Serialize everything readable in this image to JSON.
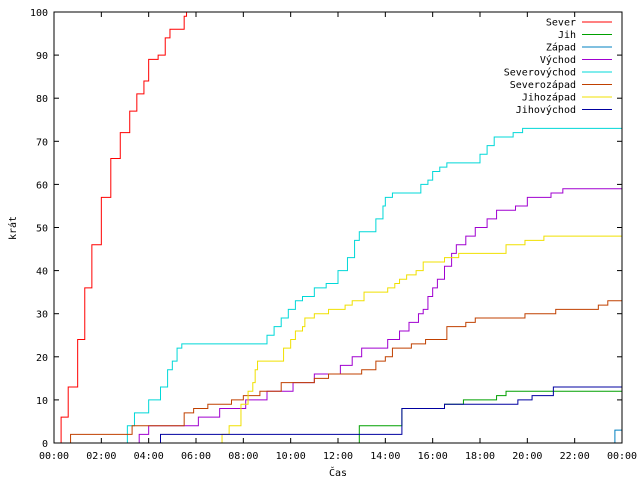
{
  "chart_data": {
    "type": "line",
    "step": true,
    "xlabel": "Čas",
    "ylabel": "krát",
    "xlim": [
      0,
      24
    ],
    "ylim": [
      0,
      100
    ],
    "x_ticks": [
      "00:00",
      "02:00",
      "04:00",
      "06:00",
      "08:00",
      "10:00",
      "12:00",
      "14:00",
      "16:00",
      "18:00",
      "20:00",
      "22:00",
      "00:00"
    ],
    "y_ticks": [
      0,
      10,
      20,
      30,
      40,
      50,
      60,
      70,
      80,
      90,
      100
    ],
    "grid": false,
    "legend_position": "top-right",
    "series": [
      {
        "name": "Sever",
        "color": "#ff0000",
        "points": [
          [
            0,
            0
          ],
          [
            0.3,
            6
          ],
          [
            0.6,
            13
          ],
          [
            1.0,
            24
          ],
          [
            1.3,
            36
          ],
          [
            1.6,
            46
          ],
          [
            2.0,
            57
          ],
          [
            2.4,
            66
          ],
          [
            2.8,
            72
          ],
          [
            3.2,
            77
          ],
          [
            3.5,
            81
          ],
          [
            3.8,
            84
          ],
          [
            4.0,
            89
          ],
          [
            4.4,
            90
          ],
          [
            4.7,
            94
          ],
          [
            4.9,
            96
          ],
          [
            5.1,
            96
          ],
          [
            5.3,
            96
          ],
          [
            5.5,
            99
          ],
          [
            5.6,
            100
          ]
        ]
      },
      {
        "name": "Jih",
        "color": "#00a000",
        "points": [
          [
            0,
            0
          ],
          [
            12.8,
            0
          ],
          [
            12.9,
            4
          ],
          [
            14.6,
            4
          ],
          [
            14.7,
            8
          ],
          [
            16.4,
            8
          ],
          [
            16.5,
            9
          ],
          [
            17.2,
            9
          ],
          [
            17.3,
            10
          ],
          [
            18.6,
            10
          ],
          [
            18.7,
            11
          ],
          [
            19.0,
            11
          ],
          [
            19.1,
            12
          ],
          [
            24,
            12
          ]
        ]
      },
      {
        "name": "Západ",
        "color": "#0080c0",
        "points": [
          [
            0,
            0
          ],
          [
            23.6,
            0
          ],
          [
            23.7,
            3
          ],
          [
            24,
            3
          ]
        ]
      },
      {
        "name": "Východ",
        "color": "#a000d0",
        "points": [
          [
            0,
            0
          ],
          [
            3.5,
            0
          ],
          [
            3.6,
            2
          ],
          [
            3.9,
            2
          ],
          [
            4.0,
            4
          ],
          [
            6.0,
            4
          ],
          [
            6.1,
            6
          ],
          [
            6.9,
            6
          ],
          [
            7.0,
            8
          ],
          [
            8.0,
            8
          ],
          [
            8.1,
            10
          ],
          [
            8.9,
            10
          ],
          [
            9.0,
            12
          ],
          [
            10.0,
            12
          ],
          [
            10.1,
            14
          ],
          [
            10.9,
            14
          ],
          [
            11.0,
            16
          ],
          [
            12.0,
            16
          ],
          [
            12.1,
            18
          ],
          [
            12.5,
            18
          ],
          [
            12.6,
            20
          ],
          [
            12.9,
            20
          ],
          [
            13.0,
            22
          ],
          [
            14.0,
            22
          ],
          [
            14.1,
            24
          ],
          [
            14.5,
            24
          ],
          [
            14.6,
            26
          ],
          [
            14.9,
            26
          ],
          [
            15.0,
            28
          ],
          [
            15.3,
            28
          ],
          [
            15.4,
            30
          ],
          [
            15.6,
            31
          ],
          [
            15.8,
            34
          ],
          [
            16.0,
            36
          ],
          [
            16.2,
            38
          ],
          [
            16.5,
            41
          ],
          [
            16.8,
            44
          ],
          [
            17.0,
            46
          ],
          [
            17.3,
            46
          ],
          [
            17.4,
            48
          ],
          [
            17.7,
            48
          ],
          [
            17.8,
            50
          ],
          [
            18.2,
            50
          ],
          [
            18.3,
            52
          ],
          [
            18.6,
            52
          ],
          [
            18.7,
            54
          ],
          [
            19.4,
            54
          ],
          [
            19.5,
            55
          ],
          [
            19.9,
            55
          ],
          [
            20.0,
            57
          ],
          [
            20.9,
            57
          ],
          [
            21.0,
            58
          ],
          [
            21.4,
            58
          ],
          [
            21.5,
            59
          ],
          [
            24,
            59
          ]
        ]
      },
      {
        "name": "Severovýchod",
        "color": "#00d8d8",
        "points": [
          [
            0,
            0
          ],
          [
            3.0,
            0
          ],
          [
            3.1,
            4
          ],
          [
            3.3,
            4
          ],
          [
            3.4,
            7
          ],
          [
            3.9,
            7
          ],
          [
            4.0,
            10
          ],
          [
            4.5,
            13
          ],
          [
            4.8,
            17
          ],
          [
            5.0,
            19
          ],
          [
            5.2,
            22
          ],
          [
            5.4,
            23
          ],
          [
            8.8,
            23
          ],
          [
            9.0,
            25
          ],
          [
            9.3,
            27
          ],
          [
            9.6,
            29
          ],
          [
            9.9,
            31
          ],
          [
            10.2,
            33
          ],
          [
            10.5,
            34
          ],
          [
            10.9,
            34
          ],
          [
            11.0,
            36
          ],
          [
            11.5,
            37
          ],
          [
            11.9,
            37
          ],
          [
            12.0,
            40
          ],
          [
            12.4,
            43
          ],
          [
            12.7,
            47
          ],
          [
            12.9,
            49
          ],
          [
            13.5,
            49
          ],
          [
            13.6,
            52
          ],
          [
            13.9,
            55
          ],
          [
            14.0,
            57
          ],
          [
            14.3,
            58
          ],
          [
            15.4,
            58
          ],
          [
            15.5,
            60
          ],
          [
            15.8,
            61
          ],
          [
            16.0,
            63
          ],
          [
            16.3,
            64
          ],
          [
            16.6,
            65
          ],
          [
            17.8,
            65
          ],
          [
            18.0,
            67
          ],
          [
            18.3,
            69
          ],
          [
            18.6,
            71
          ],
          [
            19.3,
            71
          ],
          [
            19.4,
            72
          ],
          [
            19.7,
            72
          ],
          [
            19.8,
            73
          ],
          [
            24,
            73
          ]
        ]
      },
      {
        "name": "Severozápad",
        "color": "#c04000",
        "points": [
          [
            0,
            0
          ],
          [
            0.6,
            0
          ],
          [
            0.7,
            2
          ],
          [
            3.2,
            2
          ],
          [
            3.3,
            4
          ],
          [
            5.4,
            4
          ],
          [
            5.5,
            7
          ],
          [
            5.8,
            7
          ],
          [
            5.9,
            8
          ],
          [
            6.4,
            8
          ],
          [
            6.5,
            9
          ],
          [
            7.4,
            9
          ],
          [
            7.5,
            10
          ],
          [
            7.9,
            10
          ],
          [
            8.0,
            11
          ],
          [
            8.6,
            11
          ],
          [
            8.7,
            12
          ],
          [
            9.5,
            12
          ],
          [
            9.6,
            14
          ],
          [
            10.9,
            14
          ],
          [
            11.0,
            15
          ],
          [
            11.5,
            15
          ],
          [
            11.6,
            16
          ],
          [
            12.9,
            16
          ],
          [
            13.0,
            17
          ],
          [
            13.5,
            17
          ],
          [
            13.6,
            19
          ],
          [
            13.9,
            19
          ],
          [
            14.0,
            20
          ],
          [
            14.2,
            20
          ],
          [
            14.3,
            22
          ],
          [
            15.0,
            22
          ],
          [
            15.1,
            23
          ],
          [
            15.6,
            23
          ],
          [
            15.7,
            24
          ],
          [
            16.5,
            24
          ],
          [
            16.6,
            27
          ],
          [
            17.3,
            27
          ],
          [
            17.4,
            28
          ],
          [
            17.7,
            28
          ],
          [
            17.8,
            29
          ],
          [
            19.8,
            29
          ],
          [
            19.9,
            30
          ],
          [
            21.1,
            30
          ],
          [
            21.2,
            31
          ],
          [
            22.9,
            31
          ],
          [
            23.0,
            32
          ],
          [
            23.3,
            32
          ],
          [
            23.4,
            33
          ],
          [
            24,
            33
          ]
        ]
      },
      {
        "name": "Jihozápad",
        "color": "#f0e000",
        "points": [
          [
            0,
            0
          ],
          [
            7.0,
            0
          ],
          [
            7.1,
            2
          ],
          [
            7.3,
            2
          ],
          [
            7.4,
            4
          ],
          [
            7.8,
            4
          ],
          [
            7.9,
            9
          ],
          [
            8.2,
            12
          ],
          [
            8.4,
            14
          ],
          [
            8.5,
            17
          ],
          [
            8.6,
            19
          ],
          [
            9.6,
            19
          ],
          [
            9.7,
            22
          ],
          [
            10.0,
            24
          ],
          [
            10.2,
            26
          ],
          [
            10.5,
            27
          ],
          [
            10.6,
            29
          ],
          [
            11.0,
            30
          ],
          [
            11.5,
            30
          ],
          [
            11.6,
            31
          ],
          [
            12.2,
            31
          ],
          [
            12.3,
            32
          ],
          [
            12.6,
            33
          ],
          [
            13.1,
            35
          ],
          [
            14.0,
            35
          ],
          [
            14.1,
            36
          ],
          [
            14.4,
            37
          ],
          [
            14.6,
            38
          ],
          [
            14.9,
            39
          ],
          [
            15.3,
            40
          ],
          [
            15.6,
            42
          ],
          [
            16.4,
            42
          ],
          [
            16.5,
            43
          ],
          [
            17.0,
            43
          ],
          [
            17.1,
            44
          ],
          [
            19.0,
            44
          ],
          [
            19.1,
            46
          ],
          [
            19.8,
            46
          ],
          [
            19.9,
            47
          ],
          [
            20.6,
            47
          ],
          [
            20.7,
            48
          ],
          [
            24,
            48
          ]
        ]
      },
      {
        "name": "Jihovýchod",
        "color": "#0000a0",
        "points": [
          [
            0,
            0
          ],
          [
            4.4,
            0
          ],
          [
            4.5,
            2
          ],
          [
            14.6,
            2
          ],
          [
            14.7,
            8
          ],
          [
            16.4,
            8
          ],
          [
            16.5,
            9
          ],
          [
            17.9,
            9
          ],
          [
            18.0,
            9
          ],
          [
            18.5,
            9
          ],
          [
            18.6,
            9
          ],
          [
            19.5,
            9
          ],
          [
            19.6,
            10
          ],
          [
            20.1,
            10
          ],
          [
            20.2,
            11
          ],
          [
            21.0,
            11
          ],
          [
            21.1,
            13
          ],
          [
            24,
            13
          ]
        ]
      }
    ]
  }
}
